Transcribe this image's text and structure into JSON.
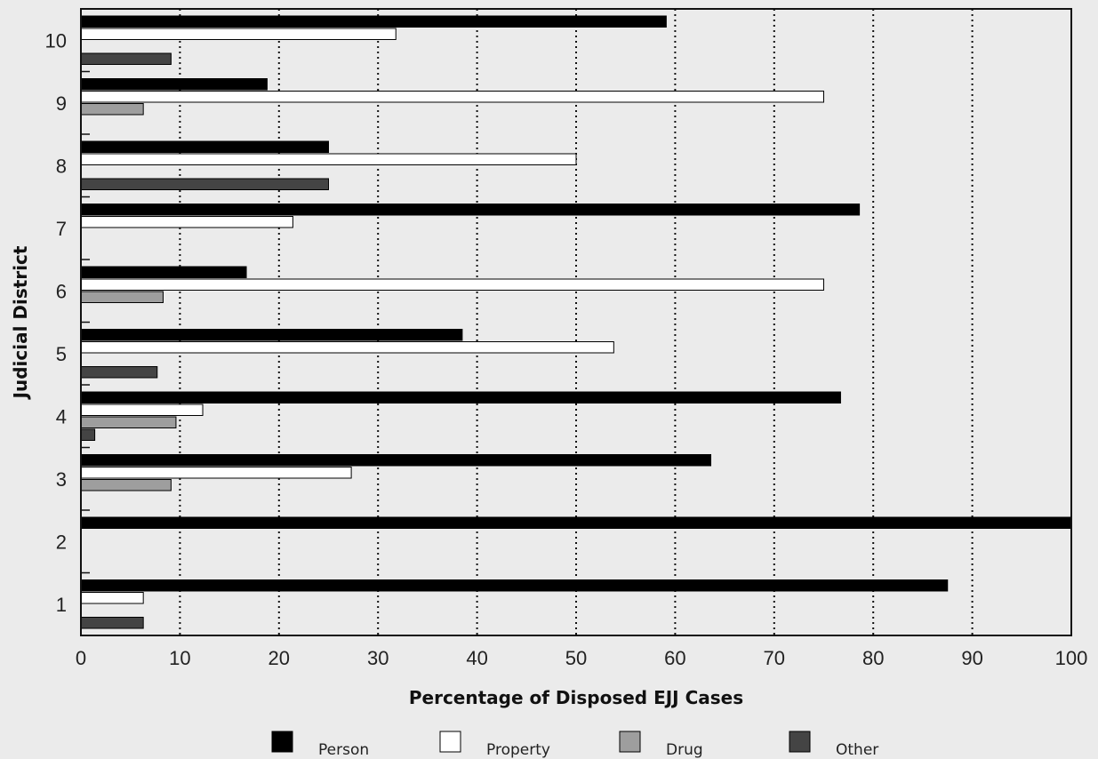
{
  "chart_data": {
    "type": "bar",
    "orientation": "horizontal",
    "xlabel": "Percentage of Disposed EJJ Cases",
    "ylabel": "Judicial District",
    "xlim": [
      0,
      100
    ],
    "x_ticks": [
      0,
      10,
      20,
      30,
      40,
      50,
      60,
      70,
      80,
      90,
      100
    ],
    "grid": "vertical dotted",
    "legend_position": "bottom",
    "categories": [
      "1",
      "2",
      "3",
      "4",
      "5",
      "6",
      "7",
      "8",
      "9",
      "10"
    ],
    "series": [
      {
        "name": "Person",
        "color": "#000000",
        "values": [
          87.5,
          100,
          63.6,
          76.7,
          38.5,
          16.7,
          78.6,
          25.0,
          18.8,
          59.1
        ]
      },
      {
        "name": "Property",
        "color": "#ffffff",
        "values": [
          6.3,
          0,
          27.3,
          12.3,
          53.8,
          75.0,
          21.4,
          50.0,
          75.0,
          31.8
        ]
      },
      {
        "name": "Drug",
        "color": "#9e9e9e",
        "values": [
          0,
          0,
          9.1,
          9.6,
          0,
          8.3,
          0,
          0,
          6.3,
          0
        ]
      },
      {
        "name": "Other",
        "color": "#444444",
        "values": [
          6.3,
          0,
          0,
          1.4,
          7.7,
          0,
          0,
          25.0,
          0,
          9.1
        ]
      }
    ]
  }
}
